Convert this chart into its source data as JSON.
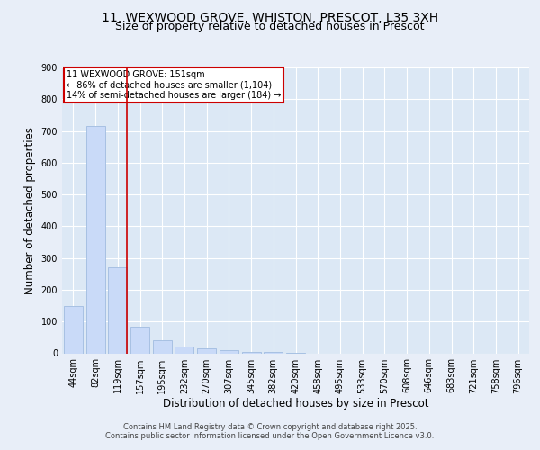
{
  "title1": "11, WEXWOOD GROVE, WHISTON, PRESCOT, L35 3XH",
  "title2": "Size of property relative to detached houses in Prescot",
  "xlabel": "Distribution of detached houses by size in Prescot",
  "ylabel": "Number of detached properties",
  "categories": [
    "44sqm",
    "82sqm",
    "119sqm",
    "157sqm",
    "195sqm",
    "232sqm",
    "270sqm",
    "307sqm",
    "345sqm",
    "382sqm",
    "420sqm",
    "458sqm",
    "495sqm",
    "533sqm",
    "570sqm",
    "608sqm",
    "646sqm",
    "683sqm",
    "721sqm",
    "758sqm",
    "796sqm"
  ],
  "values": [
    150,
    715,
    270,
    85,
    40,
    20,
    15,
    10,
    5,
    3,
    2,
    0,
    0,
    0,
    0,
    0,
    0,
    0,
    0,
    0,
    0
  ],
  "bar_color": "#c9daf8",
  "bar_edge_color": "#a0bce0",
  "red_line_x": 2.42,
  "annotation_title": "11 WEXWOOD GROVE: 151sqm",
  "annotation_line1": "← 86% of detached houses are smaller (1,104)",
  "annotation_line2": "14% of semi-detached houses are larger (184) →",
  "annotation_box_color": "#ffffff",
  "annotation_box_edge": "#cc0000",
  "red_line_color": "#cc0000",
  "ylim": [
    0,
    900
  ],
  "yticks": [
    0,
    100,
    200,
    300,
    400,
    500,
    600,
    700,
    800,
    900
  ],
  "background_color": "#e8eef8",
  "plot_background": "#dce8f5",
  "footer1": "Contains HM Land Registry data © Crown copyright and database right 2025.",
  "footer2": "Contains public sector information licensed under the Open Government Licence v3.0.",
  "title_fontsize": 10,
  "subtitle_fontsize": 9,
  "axis_label_fontsize": 8.5,
  "tick_fontsize": 7,
  "annotation_fontsize": 7,
  "footer_fontsize": 6
}
